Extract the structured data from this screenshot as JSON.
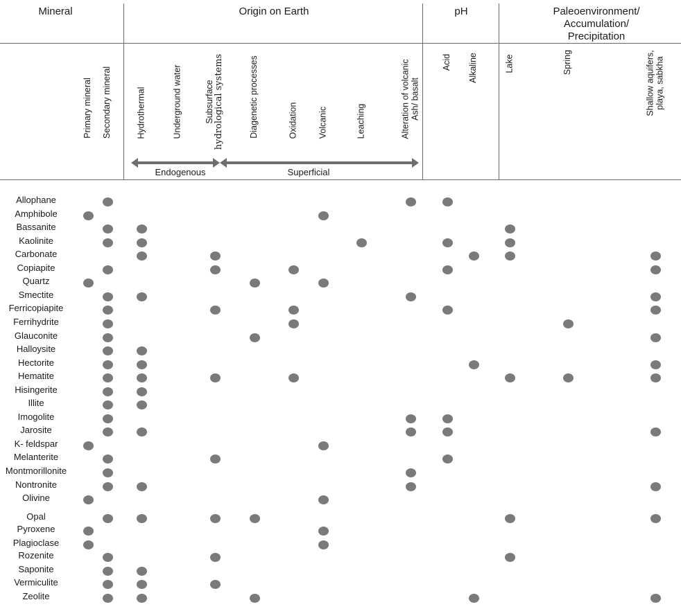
{
  "group_headers": {
    "mineral": "Mineral",
    "origin": "Origin on Earth",
    "ph": "pH",
    "paleo_line1": "Paleoenvironment/",
    "paleo_line2": "Accumulation/",
    "paleo_line3": "Precipitation"
  },
  "columns": [
    {
      "key": "primary",
      "lines": [
        "Primary mineral"
      ]
    },
    {
      "key": "secondary",
      "lines": [
        "Secondary mineral"
      ]
    },
    {
      "key": "hydrothermal",
      "lines": [
        "Hydrothermal"
      ]
    },
    {
      "key": "underground",
      "lines": [
        "Underground water"
      ]
    },
    {
      "key": "subsurface",
      "lines": [
        "Subsurface",
        "hydrological systems"
      ]
    },
    {
      "key": "diagenetic",
      "lines": [
        "Diagenetic processes"
      ]
    },
    {
      "key": "oxidation",
      "lines": [
        "Oxidation"
      ]
    },
    {
      "key": "volcanic",
      "lines": [
        "Volcanic"
      ]
    },
    {
      "key": "leaching",
      "lines": [
        "Leaching"
      ]
    },
    {
      "key": "alteration",
      "lines": [
        "Alteration of volcanic",
        "Ash/ basalt"
      ]
    },
    {
      "key": "acid",
      "lines": [
        "Acid"
      ]
    },
    {
      "key": "alkaline",
      "lines": [
        "Alkaline"
      ]
    },
    {
      "key": "lake",
      "lines": [
        "Lake"
      ]
    },
    {
      "key": "spring",
      "lines": [
        "Spring"
      ]
    },
    {
      "key": "shallow",
      "lines": [
        "Shallow aquifers,",
        "playa, sabkha"
      ]
    }
  ],
  "arrows": {
    "endogenous": "Endogenous",
    "superficial": "Superficial"
  },
  "rows": [
    {
      "mineral": "Allophane",
      "marks": [
        "secondary",
        "alteration",
        "acid"
      ]
    },
    {
      "mineral": "Amphibole",
      "marks": [
        "primary",
        "volcanic"
      ]
    },
    {
      "mineral": "Bassanite",
      "marks": [
        "secondary",
        "hydrothermal",
        "lake"
      ]
    },
    {
      "mineral": "Kaolinite",
      "marks": [
        "secondary",
        "hydrothermal",
        "leaching",
        "acid",
        "lake"
      ]
    },
    {
      "mineral": "Carbonate",
      "marks": [
        "hydrothermal",
        "subsurface",
        "alkaline",
        "lake",
        "shallow"
      ]
    },
    {
      "mineral": "Copiapite",
      "marks": [
        "secondary",
        "subsurface",
        "oxidation",
        "acid",
        "shallow"
      ]
    },
    {
      "mineral": "Quartz",
      "marks": [
        "primary",
        "diagenetic",
        "volcanic"
      ]
    },
    {
      "mineral": "Smectite",
      "marks": [
        "secondary",
        "hydrothermal",
        "alteration",
        "shallow"
      ]
    },
    {
      "mineral": "Ferricopiapite",
      "marks": [
        "secondary",
        "subsurface",
        "oxidation",
        "acid",
        "shallow"
      ]
    },
    {
      "mineral": "Ferrihydrite",
      "marks": [
        "secondary",
        "oxidation",
        "spring"
      ]
    },
    {
      "mineral": "Glauconite",
      "marks": [
        "secondary",
        "diagenetic",
        "shallow"
      ]
    },
    {
      "mineral": "Halloysite",
      "marks": [
        "secondary",
        "hydrothermal"
      ]
    },
    {
      "mineral": "Hectorite",
      "marks": [
        "secondary",
        "hydrothermal",
        "alkaline",
        "shallow"
      ]
    },
    {
      "mineral": "Hematite",
      "marks": [
        "secondary",
        "hydrothermal",
        "subsurface",
        "oxidation",
        "lake",
        "spring",
        "shallow"
      ]
    },
    {
      "mineral": "Hisingerite",
      "marks": [
        "secondary",
        "hydrothermal"
      ]
    },
    {
      "mineral": "Illite",
      "marks": [
        "secondary",
        "hydrothermal"
      ]
    },
    {
      "mineral": "Imogolite",
      "marks": [
        "secondary",
        "alteration",
        "acid"
      ]
    },
    {
      "mineral": "Jarosite",
      "marks": [
        "secondary",
        "hydrothermal",
        "alteration",
        "acid",
        "shallow"
      ]
    },
    {
      "mineral": "K- feldspar",
      "marks": [
        "primary",
        "volcanic"
      ]
    },
    {
      "mineral": "Melanterite",
      "marks": [
        "secondary",
        "subsurface",
        "acid"
      ]
    },
    {
      "mineral": "Montmorillonite",
      "marks": [
        "secondary",
        "alteration"
      ]
    },
    {
      "mineral": "Nontronite",
      "marks": [
        "secondary",
        "hydrothermal",
        "alteration",
        "shallow"
      ]
    },
    {
      "mineral": "Olivine",
      "marks": [
        "primary",
        "volcanic"
      ]
    },
    {
      "mineral": "Opal",
      "marks": [
        "secondary",
        "hydrothermal",
        "subsurface",
        "diagenetic",
        "lake",
        "shallow"
      ]
    },
    {
      "mineral": "Pyroxene",
      "marks": [
        "primary",
        "volcanic"
      ]
    },
    {
      "mineral": "Plagioclase",
      "marks": [
        "primary",
        "volcanic"
      ]
    },
    {
      "mineral": "Rozenite",
      "marks": [
        "secondary",
        "subsurface",
        "lake"
      ]
    },
    {
      "mineral": "Saponite",
      "marks": [
        "secondary",
        "hydrothermal"
      ]
    },
    {
      "mineral": "Vermiculite",
      "marks": [
        "secondary",
        "hydrothermal",
        "subsurface"
      ]
    },
    {
      "mineral": "Zeolite",
      "marks": [
        "secondary",
        "hydrothermal",
        "diagenetic",
        "alkaline",
        "shallow"
      ]
    }
  ],
  "colors": {
    "dot": "#7a7a7a",
    "rule": "#6a6a6a",
    "arrow": "#6e6e6e"
  }
}
